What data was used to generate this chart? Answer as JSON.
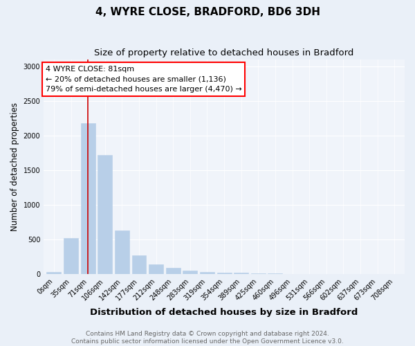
{
  "title": "4, WYRE CLOSE, BRADFORD, BD6 3DH",
  "subtitle": "Size of property relative to detached houses in Bradford",
  "xlabel": "Distribution of detached houses by size in Bradford",
  "ylabel": "Number of detached properties",
  "categories": [
    "0sqm",
    "35sqm",
    "71sqm",
    "106sqm",
    "142sqm",
    "177sqm",
    "212sqm",
    "248sqm",
    "283sqm",
    "319sqm",
    "354sqm",
    "389sqm",
    "425sqm",
    "460sqm",
    "496sqm",
    "531sqm",
    "566sqm",
    "602sqm",
    "637sqm",
    "673sqm",
    "708sqm"
  ],
  "values": [
    30,
    520,
    2180,
    1720,
    630,
    270,
    140,
    90,
    50,
    35,
    25,
    20,
    15,
    12,
    8,
    0,
    0,
    0,
    0,
    0,
    0
  ],
  "bar_color": "#b8cfe8",
  "bar_edge_color": "#b8cfe8",
  "vline_x": 2,
  "vline_color": "#cc0000",
  "annotation_line1": "4 WYRE CLOSE: 81sqm",
  "annotation_line2": "← 20% of detached houses are smaller (1,136)",
  "annotation_line3": "79% of semi-detached houses are larger (4,470) →",
  "ylim": [
    0,
    3100
  ],
  "yticks": [
    0,
    500,
    1000,
    1500,
    2000,
    2500,
    3000
  ],
  "bg_color": "#eaf0f8",
  "plot_bg_color": "#f0f4fa",
  "footer_text": "Contains HM Land Registry data © Crown copyright and database right 2024.\nContains public sector information licensed under the Open Government Licence v3.0.",
  "title_fontsize": 11,
  "subtitle_fontsize": 9.5,
  "xlabel_fontsize": 9.5,
  "ylabel_fontsize": 8.5,
  "tick_fontsize": 7,
  "footer_fontsize": 6.5,
  "ann_fontsize": 8
}
